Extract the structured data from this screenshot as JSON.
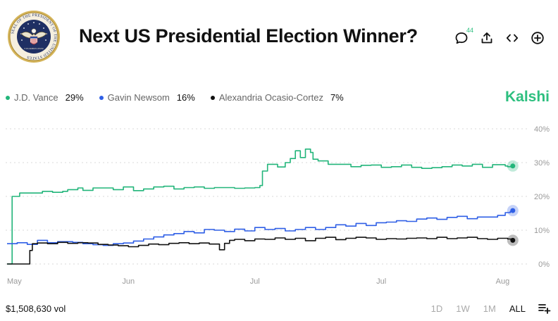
{
  "header": {
    "title": "Next US Presidential Election Winner?",
    "comments_count": "44",
    "seal": {
      "ring_text": "SEAL OF THE PRESIDENT OF THE UNITED STATES",
      "ribbon_text": "E PLURIBUS UNUM"
    }
  },
  "brand": "Kalshi",
  "colors": {
    "vance": "#22b57a",
    "newsom": "#2f5fe6",
    "aoc": "#111111",
    "brand": "#2dbf7f"
  },
  "legend": [
    {
      "name": "J.D. Vance",
      "value": "29%",
      "color": "#22b57a"
    },
    {
      "name": "Gavin Newsom",
      "value": "16%",
      "color": "#2f5fe6"
    },
    {
      "name": "Alexandria Ocasio-Cortez",
      "value": "7%",
      "color": "#111111"
    }
  ],
  "footer": {
    "volume": "$1,508,630 vol",
    "ranges": [
      {
        "label": "1D",
        "active": false
      },
      {
        "label": "1W",
        "active": false
      },
      {
        "label": "1M",
        "active": false
      },
      {
        "label": "ALL",
        "active": true
      }
    ]
  },
  "chart_data": {
    "type": "line",
    "title": "Next US Presidential Election Winner?",
    "ylim": [
      0,
      40
    ],
    "y_ticks": [
      "0%",
      "10%",
      "20%",
      "30%",
      "40%"
    ],
    "x_tick_labels": [
      "May",
      "Jun",
      "Jul",
      "Jul",
      "Aug"
    ],
    "x_tick_days": [
      0,
      48,
      98,
      148,
      196
    ],
    "x_range_days": [
      0,
      202
    ],
    "grid": true,
    "series": [
      {
        "name": "J.D. Vance",
        "color": "#22b57a",
        "points": [
          [
            0,
            0
          ],
          [
            1,
            0
          ],
          [
            2,
            20
          ],
          [
            5,
            21
          ],
          [
            10,
            21
          ],
          [
            14,
            21.5
          ],
          [
            18,
            21.2
          ],
          [
            22,
            21.5
          ],
          [
            24,
            22
          ],
          [
            28,
            22.5
          ],
          [
            30,
            21.8
          ],
          [
            34,
            22.5
          ],
          [
            38,
            22.5
          ],
          [
            42,
            22
          ],
          [
            46,
            22.8
          ],
          [
            50,
            21.7
          ],
          [
            54,
            22.2
          ],
          [
            58,
            22.8
          ],
          [
            62,
            23
          ],
          [
            66,
            22.2
          ],
          [
            70,
            22.6
          ],
          [
            74,
            22.8
          ],
          [
            78,
            22.4
          ],
          [
            82,
            22.6
          ],
          [
            86,
            22.6
          ],
          [
            90,
            22.4
          ],
          [
            94,
            22.5
          ],
          [
            98,
            22.6
          ],
          [
            100,
            23.2
          ],
          [
            101,
            27.5
          ],
          [
            103,
            29.5
          ],
          [
            107,
            28.7
          ],
          [
            110,
            30
          ],
          [
            112,
            31.2
          ],
          [
            114,
            33.5
          ],
          [
            116,
            31.5
          ],
          [
            118,
            34
          ],
          [
            120,
            33
          ],
          [
            121,
            31
          ],
          [
            123,
            30.5
          ],
          [
            127,
            29.5
          ],
          [
            131,
            29.5
          ],
          [
            136,
            28.8
          ],
          [
            140,
            29.2
          ],
          [
            144,
            29.3
          ],
          [
            148,
            28.6
          ],
          [
            152,
            28.8
          ],
          [
            156,
            29.3
          ],
          [
            160,
            28.6
          ],
          [
            164,
            28.3
          ],
          [
            168,
            28.5
          ],
          [
            172,
            28.8
          ],
          [
            176,
            29.3
          ],
          [
            180,
            29
          ],
          [
            184,
            29.5
          ],
          [
            188,
            28.6
          ],
          [
            192,
            29.4
          ],
          [
            197,
            29
          ],
          [
            198,
            28.8
          ],
          [
            200,
            29
          ]
        ]
      },
      {
        "name": "Gavin Newsom",
        "color": "#2f5fe6",
        "points": [
          [
            0,
            6
          ],
          [
            4,
            6.3
          ],
          [
            8,
            5.8
          ],
          [
            12,
            7
          ],
          [
            16,
            6.3
          ],
          [
            20,
            6.6
          ],
          [
            26,
            6.4
          ],
          [
            30,
            6
          ],
          [
            34,
            5.7
          ],
          [
            38,
            5.5
          ],
          [
            42,
            6
          ],
          [
            46,
            6.2
          ],
          [
            50,
            6.8
          ],
          [
            54,
            7.4
          ],
          [
            58,
            8
          ],
          [
            62,
            8.6
          ],
          [
            66,
            9
          ],
          [
            70,
            9.6
          ],
          [
            74,
            9.2
          ],
          [
            78,
            10.2
          ],
          [
            82,
            10
          ],
          [
            86,
            9.6
          ],
          [
            90,
            10.3
          ],
          [
            94,
            9.8
          ],
          [
            98,
            10.8
          ],
          [
            102,
            10.2
          ],
          [
            106,
            10.5
          ],
          [
            110,
            9.8
          ],
          [
            114,
            10.2
          ],
          [
            118,
            10.8
          ],
          [
            122,
            10.2
          ],
          [
            126,
            10.8
          ],
          [
            130,
            11.6
          ],
          [
            134,
            11.2
          ],
          [
            138,
            12
          ],
          [
            142,
            11.4
          ],
          [
            146,
            12.2
          ],
          [
            150,
            12.4
          ],
          [
            154,
            12.8
          ],
          [
            158,
            12.6
          ],
          [
            162,
            13.3
          ],
          [
            166,
            13.6
          ],
          [
            170,
            13.2
          ],
          [
            174,
            13.8
          ],
          [
            178,
            14.1
          ],
          [
            182,
            13.4
          ],
          [
            186,
            13.9
          ],
          [
            190,
            13.9
          ],
          [
            194,
            14.4
          ],
          [
            197,
            15.2
          ],
          [
            199,
            15.5
          ],
          [
            200,
            15.8
          ]
        ]
      },
      {
        "name": "Alexandria Ocasio-Cortez",
        "color": "#111111",
        "points": [
          [
            0,
            0
          ],
          [
            6,
            0
          ],
          [
            9,
            4
          ],
          [
            10,
            6
          ],
          [
            12,
            6.2
          ],
          [
            16,
            6
          ],
          [
            20,
            6.4
          ],
          [
            24,
            6.1
          ],
          [
            28,
            6.3
          ],
          [
            32,
            6.2
          ],
          [
            36,
            5.8
          ],
          [
            40,
            5.6
          ],
          [
            44,
            5.4
          ],
          [
            48,
            5.1
          ],
          [
            52,
            5.5
          ],
          [
            56,
            5.9
          ],
          [
            60,
            5.7
          ],
          [
            64,
            6.1
          ],
          [
            68,
            6.3
          ],
          [
            72,
            6
          ],
          [
            76,
            6.2
          ],
          [
            80,
            5.9
          ],
          [
            84,
            4.2
          ],
          [
            86,
            6.1
          ],
          [
            88,
            7
          ],
          [
            90,
            7.3
          ],
          [
            94,
            6.9
          ],
          [
            98,
            7.4
          ],
          [
            102,
            7.3
          ],
          [
            106,
            7.7
          ],
          [
            110,
            7.3
          ],
          [
            114,
            7.6
          ],
          [
            118,
            6.9
          ],
          [
            122,
            7.6
          ],
          [
            126,
            7.9
          ],
          [
            130,
            7.2
          ],
          [
            134,
            7.6
          ],
          [
            138,
            7.9
          ],
          [
            142,
            7.7
          ],
          [
            146,
            7.3
          ],
          [
            150,
            7.5
          ],
          [
            154,
            7.4
          ],
          [
            158,
            7.6
          ],
          [
            162,
            7.7
          ],
          [
            166,
            7.5
          ],
          [
            170,
            7.9
          ],
          [
            174,
            7.5
          ],
          [
            178,
            7.7
          ],
          [
            182,
            7.9
          ],
          [
            186,
            7.5
          ],
          [
            190,
            7.3
          ],
          [
            194,
            7.6
          ],
          [
            198,
            7.4
          ],
          [
            200,
            7
          ]
        ]
      }
    ],
    "end_markers": [
      {
        "series": "J.D. Vance",
        "day": 200,
        "value": 29
      },
      {
        "series": "Gavin Newsom",
        "day": 200,
        "value": 15.8
      },
      {
        "series": "Alexandria Ocasio-Cortez",
        "day": 200,
        "value": 7
      }
    ]
  }
}
